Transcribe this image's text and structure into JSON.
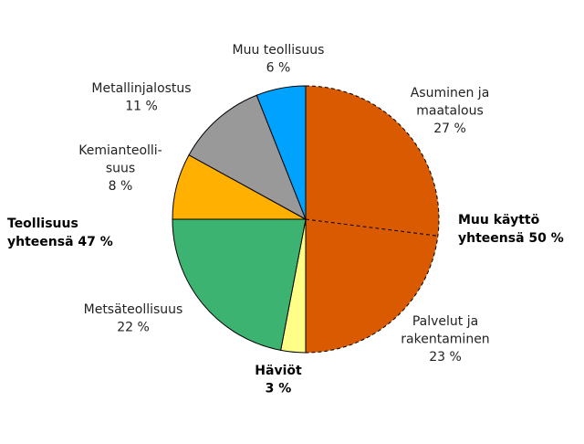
{
  "chart_data": {
    "type": "pie",
    "categories": [
      [
        "Asuminen ja",
        "maatalous"
      ],
      [
        "Palvelut ja",
        "rakentaminen"
      ],
      [
        "Häviöt"
      ],
      [
        "Metsäteollisuus"
      ],
      [
        "Kemianteolli-",
        "suus"
      ],
      [
        "Metallinjalostus"
      ],
      [
        "Muu teollisuus"
      ]
    ],
    "values": [
      27,
      23,
      3,
      22,
      8,
      11,
      6
    ],
    "value_labels": [
      "27 %",
      "23 %",
      "3 %",
      "22 %",
      "8 %",
      "11 %",
      "6 %"
    ],
    "colors": [
      "#d95a00",
      "#d95a00",
      "#ffff88",
      "#3cb371",
      "#ffb000",
      "#999999",
      "#00a2ff"
    ],
    "group_labels": [
      [
        "Muu käyttö",
        "yhteensä 50 %"
      ],
      [
        "Teollisuus",
        "yhteensä 47 %"
      ]
    ]
  }
}
